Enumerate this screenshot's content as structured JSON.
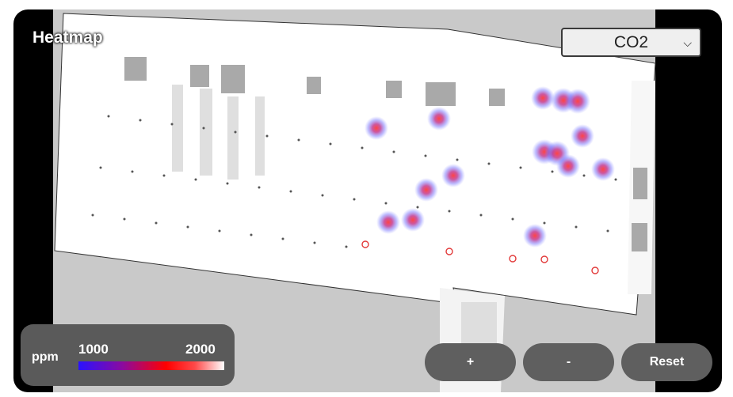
{
  "title": "Heatmap",
  "metric_select": {
    "selected": "CO2"
  },
  "legend": {
    "unit": "ppm",
    "min": "1000",
    "max": "2000",
    "colors": [
      "#2a12ff",
      "#ff0000",
      "#ffffff"
    ]
  },
  "controls": {
    "zoom_in": "+",
    "zoom_out": "-",
    "reset": "Reset"
  },
  "colors": {
    "frame": "#000000",
    "button_bg": "#5f5f5f",
    "floor": "#ffffff",
    "background": "#c9c9c9"
  }
}
